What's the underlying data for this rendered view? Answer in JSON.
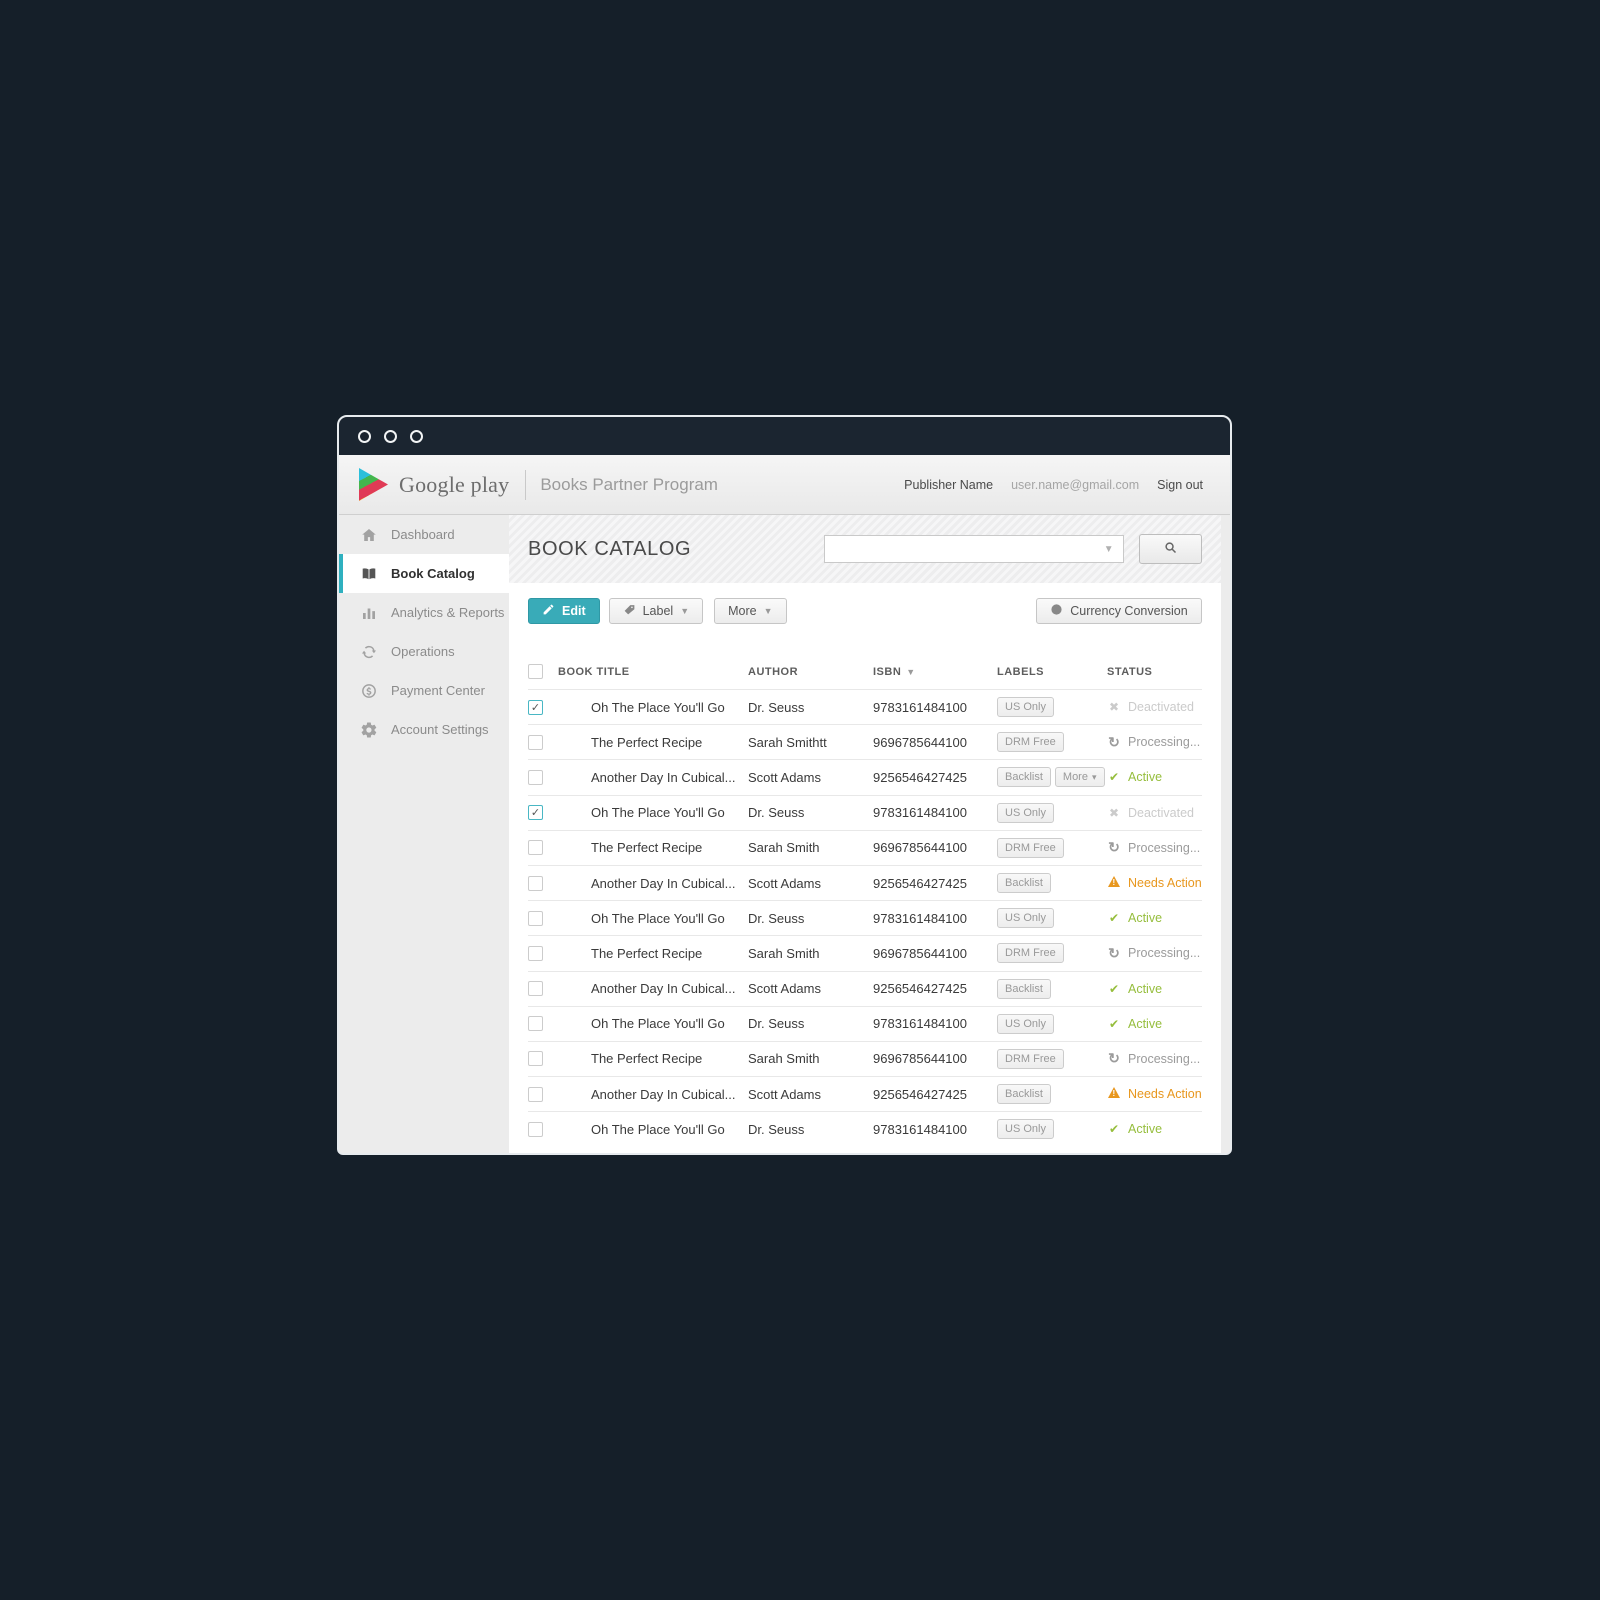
{
  "header": {
    "brand": "Google play",
    "product": "Books Partner Program",
    "publisher": "Publisher Name",
    "email": "user.name@gmail.com",
    "signout": "Sign out"
  },
  "sidebar": {
    "items": [
      {
        "label": "Dashboard",
        "icon": "home-icon",
        "active": false
      },
      {
        "label": "Book Catalog",
        "icon": "book-icon",
        "active": true
      },
      {
        "label": "Analytics & Reports",
        "icon": "chart-icon",
        "active": false
      },
      {
        "label": "Operations",
        "icon": "sync-icon",
        "active": false
      },
      {
        "label": "Payment Center",
        "icon": "dollar-icon",
        "active": false
      },
      {
        "label": "Account Settings",
        "icon": "gear-icon",
        "active": false
      }
    ]
  },
  "catalog": {
    "title": "BOOK CATALOG",
    "search_value": "",
    "search_placeholder": ""
  },
  "toolbar": {
    "edit": "Edit",
    "label": "Label",
    "more": "More",
    "currency": "Currency Conversion"
  },
  "table": {
    "columns": [
      "BOOK TITLE",
      "AUTHOR",
      "ISBN",
      "LABELS",
      "STATUS"
    ]
  },
  "rows": [
    {
      "checked": true,
      "cover": "seuss",
      "title": "Oh The Place You'll Go",
      "author": "Dr. Seuss",
      "isbn": "9783161484100",
      "labels": [
        {
          "text": "US Only"
        }
      ],
      "status": {
        "type": "deactivated",
        "label": "Deactivated"
      }
    },
    {
      "checked": false,
      "cover": "recipe",
      "title": "The Perfect Recipe",
      "author": "Sarah Smithtt",
      "isbn": "9696785644100",
      "labels": [
        {
          "text": "DRM Free"
        }
      ],
      "status": {
        "type": "processing",
        "label": "Processing..."
      }
    },
    {
      "checked": false,
      "cover": "cubical",
      "title": "Another Day In Cubical...",
      "author": "Scott Adams",
      "isbn": "9256546427425",
      "labels": [
        {
          "text": "Backlist"
        },
        {
          "text": "More",
          "caret": true
        }
      ],
      "status": {
        "type": "active",
        "label": "Active"
      }
    },
    {
      "checked": true,
      "cover": "seuss",
      "title": "Oh The Place You'll Go",
      "author": "Dr. Seuss",
      "isbn": "9783161484100",
      "labels": [
        {
          "text": "US Only"
        }
      ],
      "status": {
        "type": "deactivated",
        "label": "Deactivated"
      }
    },
    {
      "checked": false,
      "cover": "recipe",
      "title": "The Perfect Recipe",
      "author": "Sarah Smith",
      "isbn": "9696785644100",
      "labels": [
        {
          "text": "DRM Free"
        }
      ],
      "status": {
        "type": "processing",
        "label": "Processing..."
      }
    },
    {
      "checked": false,
      "cover": "cubical",
      "title": "Another Day In Cubical...",
      "author": "Scott Adams",
      "isbn": "9256546427425",
      "labels": [
        {
          "text": "Backlist"
        }
      ],
      "status": {
        "type": "needs-action",
        "label": "Needs Action"
      }
    },
    {
      "checked": false,
      "cover": "seuss",
      "title": "Oh The Place You'll Go",
      "author": "Dr. Seuss",
      "isbn": "9783161484100",
      "labels": [
        {
          "text": "US Only"
        }
      ],
      "status": {
        "type": "active",
        "label": "Active"
      }
    },
    {
      "checked": false,
      "cover": "recipe",
      "title": "The Perfect Recipe",
      "author": "Sarah Smith",
      "isbn": "9696785644100",
      "labels": [
        {
          "text": "DRM Free"
        }
      ],
      "status": {
        "type": "processing",
        "label": "Processing..."
      }
    },
    {
      "checked": false,
      "cover": "cubical",
      "title": "Another Day In Cubical...",
      "author": "Scott Adams",
      "isbn": "9256546427425",
      "labels": [
        {
          "text": "Backlist"
        }
      ],
      "status": {
        "type": "active",
        "label": "Active"
      }
    },
    {
      "checked": false,
      "cover": "seuss",
      "title": "Oh The Place You'll Go",
      "author": "Dr. Seuss",
      "isbn": "9783161484100",
      "labels": [
        {
          "text": "US Only"
        }
      ],
      "status": {
        "type": "active",
        "label": "Active"
      }
    },
    {
      "checked": false,
      "cover": "recipe",
      "title": "The Perfect Recipe",
      "author": "Sarah Smith",
      "isbn": "9696785644100",
      "labels": [
        {
          "text": "DRM Free"
        }
      ],
      "status": {
        "type": "processing",
        "label": "Processing..."
      }
    },
    {
      "checked": false,
      "cover": "cubical",
      "title": "Another Day In Cubical...",
      "author": "Scott Adams",
      "isbn": "9256546427425",
      "labels": [
        {
          "text": "Backlist"
        }
      ],
      "status": {
        "type": "needs-action",
        "label": "Needs Action"
      }
    },
    {
      "checked": false,
      "cover": "seuss",
      "title": "Oh The Place You'll Go",
      "author": "Dr. Seuss",
      "isbn": "9783161484100",
      "labels": [
        {
          "text": "US Only"
        }
      ],
      "status": {
        "type": "active",
        "label": "Active"
      }
    }
  ],
  "status_icons": {
    "active": "✔",
    "deactivated": "✖",
    "processing": "↻",
    "needs-action": "warning-triangle"
  },
  "colors": {
    "accent_teal": "#39abb8",
    "active_green": "#96be3d",
    "needs_action_orange": "#e8971e",
    "processing_gray": "#9b9b9b",
    "deactivated_gray": "#cbcbcb",
    "titlebar_dark": "#1b2530",
    "page_background": "#151f29"
  }
}
